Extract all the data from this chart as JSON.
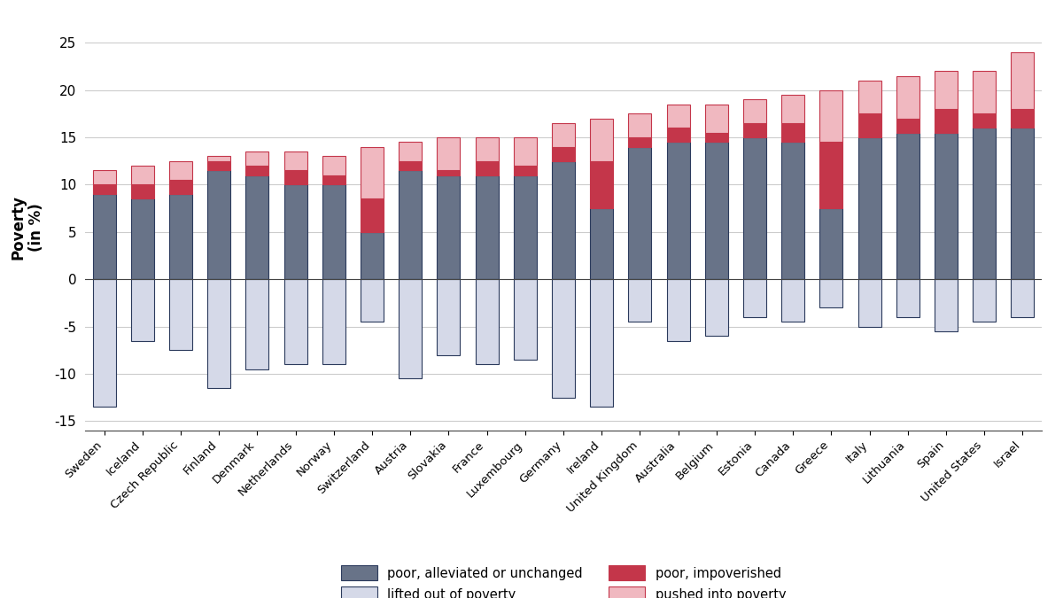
{
  "countries": [
    "Sweden",
    "Iceland",
    "Czech Republic",
    "Finland",
    "Denmark",
    "Netherlands",
    "Norway",
    "Switzerland",
    "Austria",
    "Slovakia",
    "France",
    "Luxembourg",
    "Germany",
    "Ireland",
    "United Kingdom",
    "Australia",
    "Belgium",
    "Estonia",
    "Canada",
    "Greece",
    "Italy",
    "Lithuania",
    "Spain",
    "United States",
    "Israel"
  ],
  "poor_alleviated": [
    9.0,
    8.5,
    9.0,
    11.5,
    11.0,
    10.0,
    10.0,
    5.0,
    11.5,
    11.0,
    11.0,
    11.0,
    12.5,
    7.5,
    14.0,
    14.5,
    14.5,
    15.0,
    14.5,
    7.5,
    15.0,
    15.5,
    15.5,
    16.0,
    16.0
  ],
  "poor_impoverished": [
    1.0,
    1.5,
    1.5,
    1.0,
    1.0,
    1.5,
    1.0,
    3.5,
    1.0,
    0.5,
    1.5,
    1.0,
    1.5,
    5.0,
    1.0,
    1.5,
    1.0,
    1.5,
    2.0,
    7.0,
    2.5,
    1.5,
    2.5,
    1.5,
    2.0
  ],
  "pushed_into_poverty": [
    1.5,
    2.0,
    2.0,
    0.5,
    1.5,
    2.0,
    2.0,
    5.5,
    2.0,
    3.5,
    2.5,
    3.0,
    2.5,
    4.5,
    2.5,
    2.5,
    3.0,
    2.5,
    3.0,
    5.5,
    3.5,
    4.5,
    4.0,
    4.5,
    6.0
  ],
  "lifted_out_of_poverty": [
    -13.5,
    -6.5,
    -7.5,
    -11.5,
    -9.5,
    -9.0,
    -9.0,
    -4.5,
    -10.5,
    -8.0,
    -9.0,
    -8.5,
    -12.5,
    -13.5,
    -4.5,
    -6.5,
    -6.0,
    -4.0,
    -4.5,
    -3.0,
    -5.0,
    -4.0,
    -5.5,
    -4.5,
    -4.0
  ],
  "color_alleviated": "#687388",
  "color_impoverished": "#c4364a",
  "color_pushed": "#f0b8c0",
  "color_lifted": "#d5d9e8",
  "edge_color_dark": "#2b3a5c",
  "edge_color_pink": "#c4364a",
  "ylim": [
    -16,
    27
  ],
  "yticks": [
    -15,
    -10,
    -5,
    0,
    5,
    10,
    15,
    20,
    25
  ],
  "ylabel": "Poverty\n(in %)",
  "legend_labels": [
    "poor, alleviated or unchanged",
    "lifted out of poverty",
    "poor, impoverished",
    "pushed into poverty"
  ],
  "background_color": "#ffffff",
  "grid_color": "#cccccc",
  "bar_width": 0.6
}
